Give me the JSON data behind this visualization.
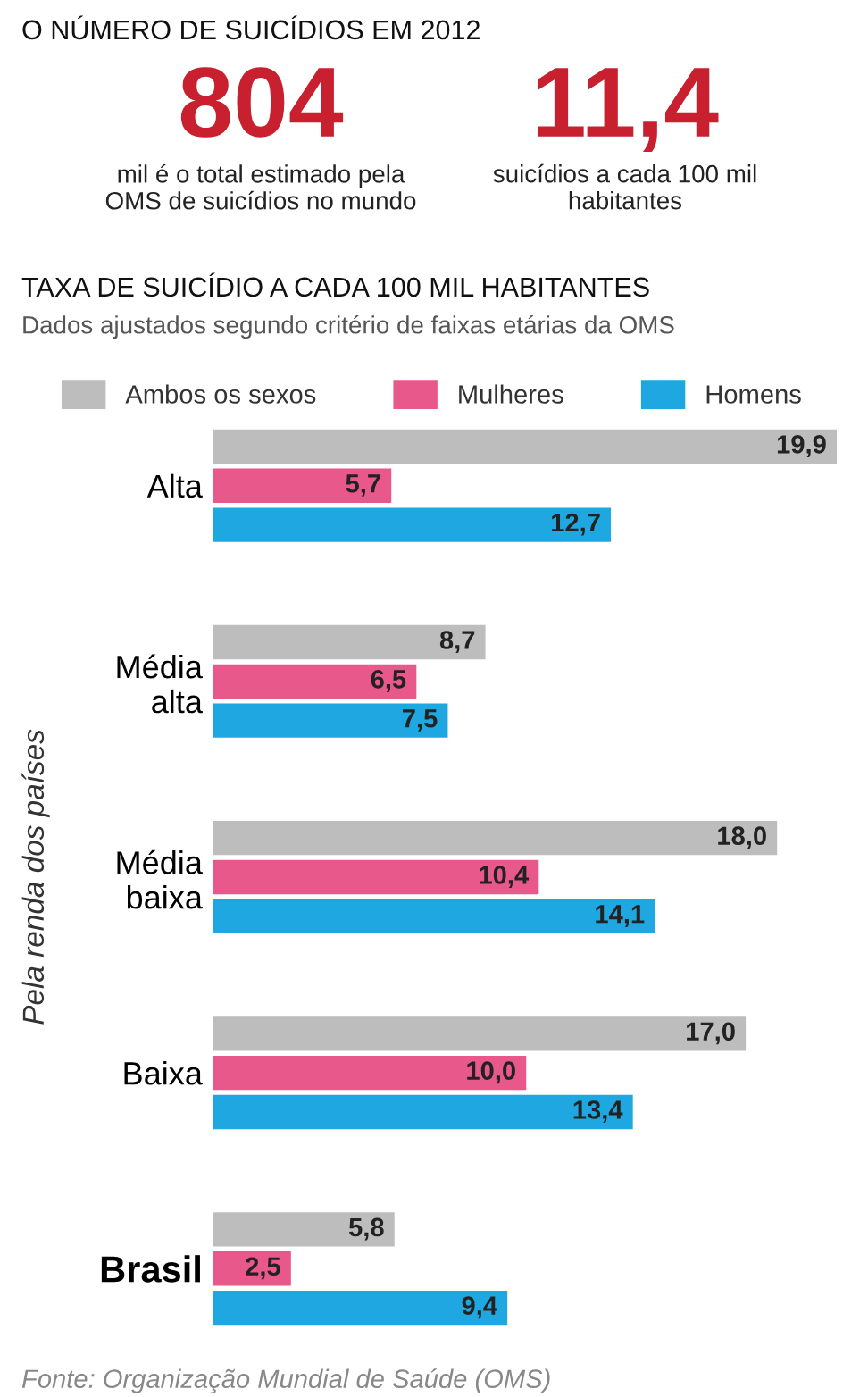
{
  "chart_data": {
    "type": "bar",
    "orientation": "horizontal",
    "title": "TAXA DE SUICÍDIO A CADA 100 MIL HABITANTES",
    "subtitle": "Dados ajustados segundo critério de faixas etárias da OMS",
    "ylabel": "Pela renda dos países",
    "categories": [
      "Alta",
      "Média\nalta",
      "Média\nbaixa",
      "Baixa",
      "Brasil"
    ],
    "series": [
      {
        "name": "Ambos os sexos",
        "color": "#bdbdbd",
        "values": [
          19.9,
          8.7,
          18.0,
          17.0,
          5.8
        ],
        "value_labels": [
          "19,9",
          "8,7",
          "18,0",
          "17,0",
          "5,8"
        ]
      },
      {
        "name": "Mulheres",
        "color": "#e8588a",
        "values": [
          5.7,
          6.5,
          10.4,
          10.0,
          2.5
        ],
        "value_labels": [
          "5,7",
          "6,5",
          "10,4",
          "10,0",
          "2,5"
        ]
      },
      {
        "name": "Homens",
        "color": "#1ea7e1",
        "values": [
          12.7,
          7.5,
          14.1,
          13.4,
          9.4
        ],
        "value_labels": [
          "12,7",
          "7,5",
          "14,1",
          "13,4",
          "9,4"
        ]
      }
    ],
    "legend": "top",
    "grid": false,
    "tick_labels": "y",
    "annotations": [
      "O NÚMERO DE SUICÍDIOS EM 2012",
      "804",
      "mil é o total estimado pela\nOMS de suicídios no mundo",
      "11,4",
      "suicídios a cada 100 mil\nhabitantes",
      "Fonte: Organização Mundial de Saúde (OMS)"
    ]
  }
}
